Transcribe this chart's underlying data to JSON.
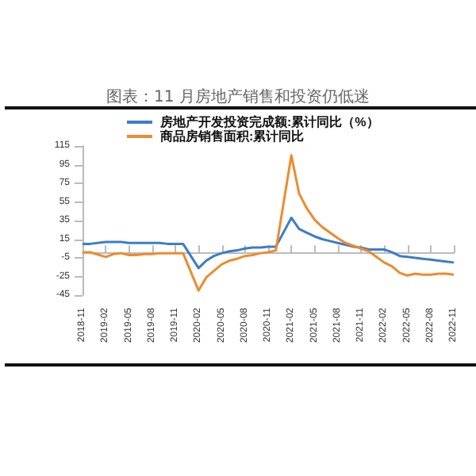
{
  "chart_data": {
    "type": "line",
    "title": "图表：11 月房地产销售和投资仍低迷",
    "categories": [
      "2018-11",
      null,
      null,
      "2019-02",
      null,
      null,
      "2019-05",
      null,
      null,
      "2019-08",
      null,
      null,
      "2019-11",
      null,
      null,
      "2020-02",
      null,
      null,
      "2020-05",
      null,
      null,
      "2020-08",
      null,
      null,
      "2020-11",
      null,
      null,
      "2021-02",
      null,
      null,
      "2021-05",
      null,
      null,
      "2021-08",
      null,
      null,
      "2021-11",
      null,
      null,
      "2022-02",
      null,
      null,
      "2022-05",
      null,
      null,
      "2022-08",
      null,
      null,
      "2022-11"
    ],
    "series": [
      {
        "name": "房地产开发投资完成额:累计同比（%）",
        "color": "#3b7dc9",
        "values": [
          10,
          10,
          null,
          12,
          12,
          12,
          11,
          11,
          11,
          11,
          11,
          10,
          10,
          10,
          null,
          -16,
          -8,
          -3,
          0,
          2,
          3,
          5,
          6,
          6,
          7,
          7,
          null,
          38,
          26,
          22,
          18,
          15,
          13,
          11,
          9,
          7,
          6,
          4,
          null,
          4,
          1,
          -3,
          -4,
          -5,
          -6,
          -7,
          -8,
          -9,
          -10
        ]
      },
      {
        "name": "商品房销售面积:累计同比",
        "color": "#ee8b2d",
        "values": [
          1,
          1,
          null,
          -4,
          -1,
          0,
          -2,
          -2,
          -1,
          -1,
          0,
          0,
          0,
          0,
          null,
          -40,
          -26,
          -19,
          -12,
          -8,
          -6,
          -3,
          -2,
          0,
          1,
          3,
          null,
          105,
          64,
          48,
          36,
          28,
          22,
          16,
          11,
          8,
          5,
          2,
          null,
          -10,
          -14,
          -21,
          -24,
          -22,
          -23,
          -23,
          -22,
          -22,
          -23
        ]
      }
    ],
    "ylim": [
      -45,
      115
    ],
    "yticks": [
      -45,
      -25,
      -5,
      15,
      35,
      55,
      75,
      95,
      115
    ],
    "grid": false,
    "legend": "top left",
    "marker": "none",
    "line_style": "solid"
  }
}
